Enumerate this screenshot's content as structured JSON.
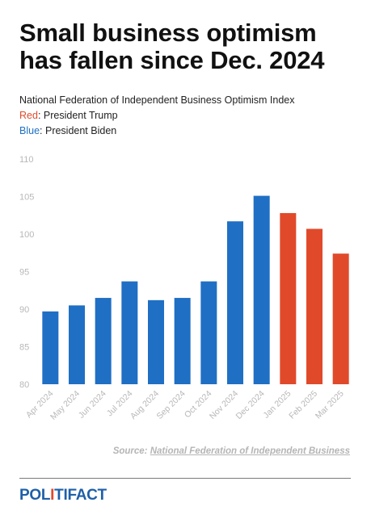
{
  "header": {
    "title": "Small business optimism has fallen since Dec. 2024",
    "subtitle": "National Federation of Independent Business Optimism Index",
    "legend_red_key": "Red",
    "legend_red_text": ": President Trump",
    "legend_blue_key": "Blue",
    "legend_blue_text": ": President Biden"
  },
  "chart_data": {
    "type": "bar",
    "title": "",
    "xlabel": "",
    "ylabel": "",
    "ylim": [
      80,
      110
    ],
    "yticks": [
      80,
      85,
      90,
      95,
      100,
      105,
      110
    ],
    "grid": false,
    "categories": [
      "Apr 2024",
      "May 2024",
      "Jun 2024",
      "Jul 2024",
      "Aug 2024",
      "Sep 2024",
      "Oct 2024",
      "Nov 2024",
      "Dec 2024",
      "Jan 2025",
      "Feb 2025",
      "Mar 2025"
    ],
    "values": [
      89.7,
      90.5,
      91.5,
      93.7,
      91.2,
      91.5,
      93.7,
      101.7,
      105.1,
      102.8,
      100.7,
      97.4
    ],
    "president": [
      "Biden",
      "Biden",
      "Biden",
      "Biden",
      "Biden",
      "Biden",
      "Biden",
      "Biden",
      "Biden",
      "Trump",
      "Trump",
      "Trump"
    ],
    "colors": {
      "Biden": "#1f6fc4",
      "Trump": "#e04a2b"
    }
  },
  "source": {
    "label": "Source:",
    "link_text": "National Federation of Independent Business"
  },
  "logo": {
    "part1": "POL",
    "part2": "I",
    "part3": "TIFACT"
  }
}
